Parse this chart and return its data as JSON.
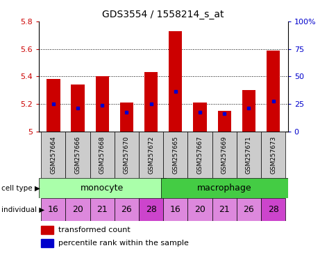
{
  "title": "GDS3554 / 1558214_s_at",
  "samples": [
    "GSM257664",
    "GSM257666",
    "GSM257668",
    "GSM257670",
    "GSM257672",
    "GSM257665",
    "GSM257667",
    "GSM257669",
    "GSM257671",
    "GSM257673"
  ],
  "transformed_count": [
    5.38,
    5.34,
    5.4,
    5.21,
    5.43,
    5.73,
    5.21,
    5.15,
    5.3,
    5.59
  ],
  "percentile_rank": [
    5.2,
    5.17,
    5.19,
    5.14,
    5.2,
    5.29,
    5.14,
    5.13,
    5.17,
    5.22
  ],
  "ylim": [
    5.0,
    5.8
  ],
  "yticks": [
    5.0,
    5.2,
    5.4,
    5.6,
    5.8
  ],
  "ytick_labels": [
    "5",
    "5.2",
    "5.4",
    "5.6",
    "5.8"
  ],
  "y2ticks_pct": [
    0,
    25,
    50,
    75,
    100
  ],
  "y2labels": [
    "0",
    "25",
    "50",
    "75",
    "100%"
  ],
  "bar_color": "#cc0000",
  "dot_color": "#0000cc",
  "cell_type_groups": [
    [
      "monocyte",
      0,
      5
    ],
    [
      "macrophage",
      5,
      10
    ]
  ],
  "cell_type_colors": {
    "monocyte": "#aaffaa",
    "macrophage": "#44cc44"
  },
  "individuals": [
    "16",
    "20",
    "21",
    "26",
    "28",
    "16",
    "20",
    "21",
    "26",
    "28"
  ],
  "individual_base_color": "#dd88dd",
  "individual_highlight_indices": [
    4,
    9
  ],
  "individual_highlight_color": "#cc44cc",
  "bar_width": 0.55,
  "ylabel_color": "#cc0000",
  "y2label_color": "#0000cc",
  "sample_label_bg": "#cccccc",
  "legend_items": [
    {
      "color": "#cc0000",
      "label": "transformed count"
    },
    {
      "color": "#0000cc",
      "label": "percentile rank within the sample"
    }
  ]
}
